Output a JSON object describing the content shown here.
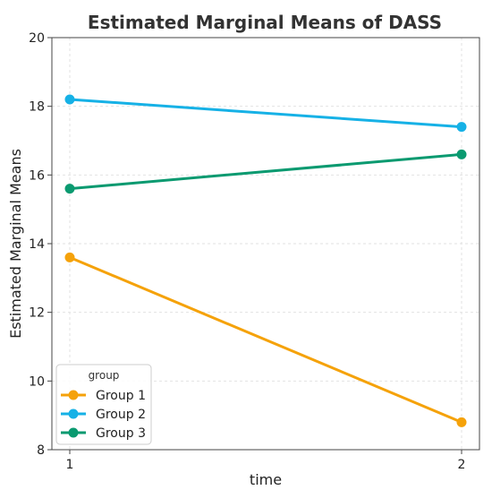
{
  "chart_data": {
    "type": "line",
    "title": "Estimated Marginal Means of DASS",
    "xlabel": "time",
    "ylabel": "Estimated Marginal Means",
    "categories": [
      "1",
      "2"
    ],
    "x": [
      1,
      2
    ],
    "ylim": [
      8,
      20
    ],
    "yticks": [
      "8",
      "10",
      "12",
      "14",
      "16",
      "18",
      "20"
    ],
    "grid": true,
    "legend": {
      "title": "group",
      "placement": "bottom-left"
    },
    "series": [
      {
        "name": "Group 1",
        "color": "#f5a20a",
        "values": [
          13.6,
          8.8
        ]
      },
      {
        "name": "Group 2",
        "color": "#16b1e6",
        "values": [
          18.2,
          17.4
        ]
      },
      {
        "name": "Group 3",
        "color": "#0a9a70",
        "values": [
          15.6,
          16.6
        ]
      }
    ]
  }
}
